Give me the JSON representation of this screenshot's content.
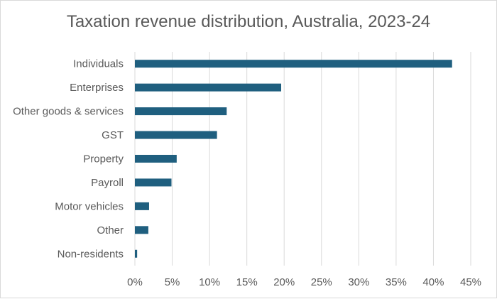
{
  "chart_data": {
    "type": "bar",
    "orientation": "horizontal",
    "title": "Taxation revenue distribution, Australia, 2023-24",
    "xlabel": "",
    "ylabel": "",
    "categories": [
      "Individuals",
      "Enterprises",
      "Other goods & services",
      "GST",
      "Property",
      "Payroll",
      "Motor vehicles",
      "Other",
      "Non-residents"
    ],
    "values": [
      42.5,
      19.6,
      12.3,
      11.0,
      5.6,
      4.9,
      1.9,
      1.8,
      0.3
    ],
    "xlim": [
      0,
      45
    ],
    "ticks": [
      0,
      5,
      10,
      15,
      20,
      25,
      30,
      35,
      40,
      45
    ],
    "tick_labels": [
      "0%",
      "5%",
      "10%",
      "15%",
      "20%",
      "25%",
      "30%",
      "35%",
      "40%",
      "45%"
    ],
    "grid": "vertical",
    "bar_color": "#1f5f7f",
    "grid_color": "#d9d9d9",
    "text_color": "#595959"
  }
}
